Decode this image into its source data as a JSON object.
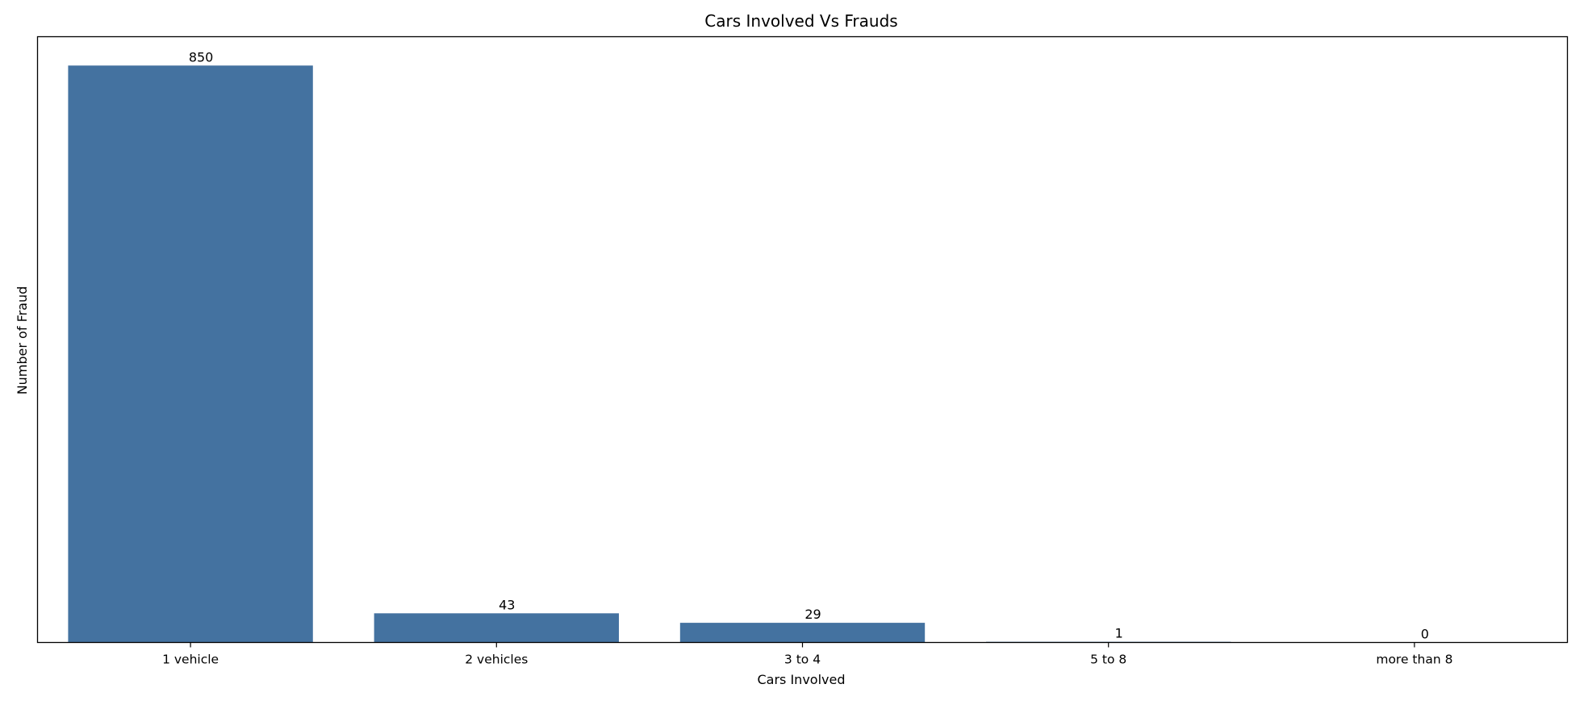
{
  "chart_data": {
    "type": "bar",
    "title": "Cars Involved Vs Frauds",
    "xlabel": "Cars Involved",
    "ylabel": "Number of Fraud",
    "categories": [
      "1 vehicle",
      "2 vehicles",
      "3 to 4",
      "5 to 8",
      "more than 8"
    ],
    "values": [
      850,
      43,
      29,
      1,
      0
    ],
    "data_labels": [
      "850",
      "43",
      "29",
      "1",
      "0"
    ],
    "ylim": [
      0,
      892.5
    ],
    "y_ticks_visible": false,
    "grid": false,
    "legend": "none",
    "bar_color": "#4472a0"
  }
}
